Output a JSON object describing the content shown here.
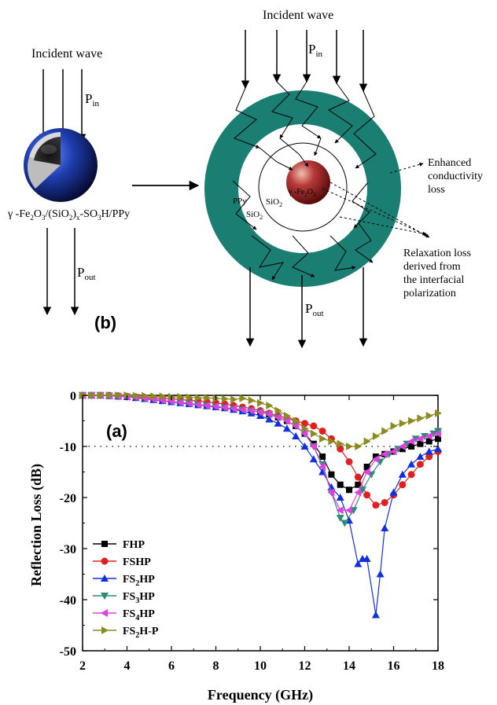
{
  "diagram": {
    "left": {
      "incident_label": "Incident wave",
      "pin_label": "P",
      "pin_sub": "in",
      "pout_label": "P",
      "pout_sub": "out",
      "formula": {
        "p1": "γ -Fe",
        "s1": "2",
        "p2": "O",
        "s2": "3",
        "p3": "/(SiO",
        "s3": "2",
        "p4": ")",
        "s4": "x",
        "p5": "-SO",
        "s5": "3",
        "p6": "H/PPy"
      },
      "panel_label": "(b)"
    },
    "right": {
      "incident_label": "Incident wave",
      "pin_label": "P",
      "pin_sub": "in",
      "pout_label": "P",
      "pout_sub": "out",
      "ppy_label": "PPy",
      "sio2_outer": {
        "base": "SiO",
        "sub": "2"
      },
      "sio2_inner": {
        "base": "SiO",
        "sub": "2"
      },
      "core_label": {
        "p1": "γ -Fe",
        "s1": "2",
        "p2": "O",
        "s2": "3"
      },
      "annotation1": [
        "Enhanced",
        "conductivity",
        "loss"
      ],
      "annotation2": [
        "Relaxation loss",
        "derived from",
        "the interfacial",
        "polarization"
      ]
    },
    "colors": {
      "shell": "#1b7e73",
      "core": "#a32424",
      "sphere_blue": "#1f3fb0"
    }
  },
  "chart_data": {
    "type": "line",
    "panel_label": "(a)",
    "xlabel": "Frequency (GHz)",
    "ylabel": "Reflection Loss (dB)",
    "xlim": [
      2,
      18
    ],
    "ylim": [
      -50,
      0
    ],
    "xticks": [
      2,
      4,
      6,
      8,
      10,
      12,
      14,
      16,
      18
    ],
    "yticks": [
      0,
      -10,
      -20,
      -30,
      -40,
      -50
    ],
    "reference_line": {
      "y": -10,
      "style": "dotted"
    },
    "legend_position": "bottom-left",
    "series": [
      {
        "name": "FHP",
        "base": "FHP",
        "sub": "",
        "tail": "",
        "color": "#000000",
        "marker": "square",
        "x": [
          2,
          2.4,
          2.8,
          3.2,
          3.6,
          4,
          4.4,
          4.8,
          5.2,
          5.6,
          6,
          6.4,
          6.8,
          7.2,
          7.6,
          8,
          8.4,
          8.8,
          9.2,
          9.6,
          10,
          10.4,
          10.8,
          11.2,
          11.6,
          12,
          12.4,
          12.8,
          13.2,
          13.6,
          14,
          14.4,
          14.8,
          15.2,
          15.6,
          16,
          16.4,
          16.8,
          17.2,
          17.6,
          18
        ],
        "y": [
          0,
          0,
          0,
          -0.1,
          -0.2,
          -0.3,
          -0.4,
          -0.6,
          -0.8,
          -1,
          -1.2,
          -1.4,
          -1.6,
          -1.8,
          -2,
          -2.2,
          -2.4,
          -2.6,
          -2.8,
          -3,
          -3.3,
          -3.7,
          -4.3,
          -5,
          -6,
          -7.5,
          -9.5,
          -12,
          -15.5,
          -17.5,
          -18.5,
          -17.5,
          -14,
          -12,
          -11.5,
          -11,
          -10.5,
          -10,
          -9.5,
          -9,
          -8.5
        ]
      },
      {
        "name": "FSHP",
        "base": "FSHP",
        "sub": "",
        "tail": "",
        "color": "#e02020",
        "marker": "circle",
        "x": [
          2,
          2.4,
          2.8,
          3.2,
          3.6,
          4,
          4.4,
          4.8,
          5.2,
          5.6,
          6,
          6.4,
          6.8,
          7.2,
          7.6,
          8,
          8.4,
          8.8,
          9.2,
          9.6,
          10,
          10.4,
          10.8,
          11.2,
          11.6,
          12,
          12.4,
          12.8,
          13.2,
          13.6,
          14,
          14.4,
          14.8,
          15.2,
          15.6,
          16,
          16.4,
          16.8,
          17.2,
          17.6,
          18
        ],
        "y": [
          0,
          0,
          0,
          0,
          -0.1,
          -0.2,
          -0.3,
          -0.4,
          -0.5,
          -0.6,
          -0.7,
          -0.8,
          -1,
          -1.1,
          -1.3,
          -1.5,
          -1.7,
          -2,
          -2.3,
          -2.6,
          -3,
          -3.5,
          -4,
          -4.5,
          -5,
          -5.5,
          -6,
          -7,
          -8.5,
          -10.5,
          -13,
          -16,
          -19.5,
          -21.5,
          -21,
          -19.5,
          -17.5,
          -15.5,
          -13.5,
          -12,
          -11
        ]
      },
      {
        "name": "FS2HP",
        "base": "FS",
        "sub": "2",
        "tail": "HP",
        "color": "#1030e0",
        "marker": "triangle-up",
        "x": [
          2,
          2.4,
          2.8,
          3.2,
          3.6,
          4,
          4.4,
          4.8,
          5.2,
          5.6,
          6,
          6.4,
          6.8,
          7.2,
          7.6,
          8,
          8.4,
          8.8,
          9.2,
          9.6,
          10,
          10.4,
          10.8,
          11.2,
          11.6,
          12,
          12.4,
          12.8,
          13.2,
          13.6,
          14,
          14.4,
          14.6,
          14.8,
          15.2,
          15.4,
          15.6,
          16,
          16.4,
          16.8,
          17.2,
          17.6,
          18
        ],
        "y": [
          0,
          0,
          0,
          -0.1,
          -0.2,
          -0.3,
          -0.5,
          -0.7,
          -0.9,
          -1.1,
          -1.3,
          -1.5,
          -1.7,
          -1.9,
          -2.1,
          -2.3,
          -2.5,
          -2.8,
          -3.1,
          -3.5,
          -4,
          -4.7,
          -5.5,
          -6.5,
          -8,
          -10,
          -12.5,
          -15,
          -18,
          -20,
          -24.5,
          -33,
          -32,
          -32,
          -43,
          -35,
          -26,
          -19,
          -15.5,
          -13.5,
          -12,
          -11,
          -10.5
        ]
      },
      {
        "name": "FS3HP",
        "base": "FS",
        "sub": "3",
        "tail": "HP",
        "color": "#2e8b7a",
        "marker": "triangle-down",
        "x": [
          2,
          2.4,
          2.8,
          3.2,
          3.6,
          4,
          4.4,
          4.8,
          5.2,
          5.6,
          6,
          6.4,
          6.8,
          7.2,
          7.6,
          8,
          8.4,
          8.8,
          9.2,
          9.6,
          10,
          10.4,
          10.8,
          11.2,
          11.6,
          12,
          12.4,
          12.8,
          13.2,
          13.6,
          13.8,
          14.2,
          14.6,
          15,
          15.4,
          15.8,
          16.2,
          16.6,
          17,
          17.4,
          17.8,
          18
        ],
        "y": [
          0,
          0,
          0,
          -0.1,
          -0.2,
          -0.3,
          -0.4,
          -0.6,
          -0.8,
          -1,
          -1.2,
          -1.4,
          -1.6,
          -1.8,
          -2,
          -2.2,
          -2.4,
          -2.6,
          -2.8,
          -3,
          -3.3,
          -3.7,
          -4.3,
          -5,
          -6,
          -7.5,
          -10,
          -13.5,
          -19,
          -24,
          -25,
          -22.5,
          -18.5,
          -15.5,
          -13,
          -11.5,
          -10.5,
          -9.5,
          -8.5,
          -8,
          -7.5,
          -7
        ]
      },
      {
        "name": "FS4HP",
        "base": "FS",
        "sub": "4",
        "tail": "HP",
        "color": "#e040e0",
        "marker": "triangle-left",
        "x": [
          2,
          2.4,
          2.8,
          3.2,
          3.6,
          4,
          4.4,
          4.8,
          5.2,
          5.6,
          6,
          6.4,
          6.8,
          7.2,
          7.6,
          8,
          8.4,
          8.8,
          9.2,
          9.6,
          10,
          10.4,
          10.8,
          11.2,
          11.6,
          12,
          12.4,
          12.8,
          13.2,
          13.6,
          14,
          14.4,
          14.8,
          15.2,
          15.6,
          16,
          16.4,
          16.8,
          17.2,
          17.6,
          18
        ],
        "y": [
          0,
          0,
          0,
          -0.1,
          -0.2,
          -0.3,
          -0.4,
          -0.6,
          -0.8,
          -1,
          -1.2,
          -1.4,
          -1.6,
          -1.8,
          -2,
          -2.2,
          -2.4,
          -2.6,
          -2.8,
          -3,
          -3.3,
          -3.7,
          -4.3,
          -5,
          -6,
          -7.5,
          -10,
          -14,
          -19,
          -22.5,
          -22.5,
          -19,
          -15,
          -12.5,
          -11.5,
          -11,
          -10,
          -9,
          -8.5,
          -8,
          -7.5
        ]
      },
      {
        "name": "FS2H-P",
        "base": "FS",
        "sub": "2",
        "tail": "H-P",
        "color": "#8b8b20",
        "marker": "triangle-right",
        "x": [
          2,
          2.4,
          2.8,
          3.2,
          3.6,
          4,
          4.4,
          4.8,
          5.2,
          5.6,
          6,
          6.4,
          6.8,
          7.2,
          7.6,
          8,
          8.4,
          8.8,
          9.2,
          9.6,
          10,
          10.4,
          10.8,
          11.2,
          11.6,
          12,
          12.4,
          12.8,
          13.2,
          13.6,
          14,
          14.4,
          14.8,
          15.2,
          15.6,
          16,
          16.4,
          16.8,
          17.2,
          17.6,
          18
        ],
        "y": [
          0,
          0,
          0,
          0,
          0,
          0,
          -0.1,
          -0.1,
          -0.2,
          -0.2,
          -0.3,
          -0.3,
          -0.4,
          -0.5,
          -0.5,
          -0.6,
          -0.7,
          -0.8,
          -0.6,
          -1,
          -1.5,
          -2,
          -3,
          -4,
          -5,
          -6.5,
          -7.5,
          -8.5,
          -9,
          -9.5,
          -10,
          -10,
          -9,
          -8,
          -7,
          -6,
          -5.5,
          -5,
          -4.5,
          -4,
          -3.5
        ]
      }
    ]
  }
}
